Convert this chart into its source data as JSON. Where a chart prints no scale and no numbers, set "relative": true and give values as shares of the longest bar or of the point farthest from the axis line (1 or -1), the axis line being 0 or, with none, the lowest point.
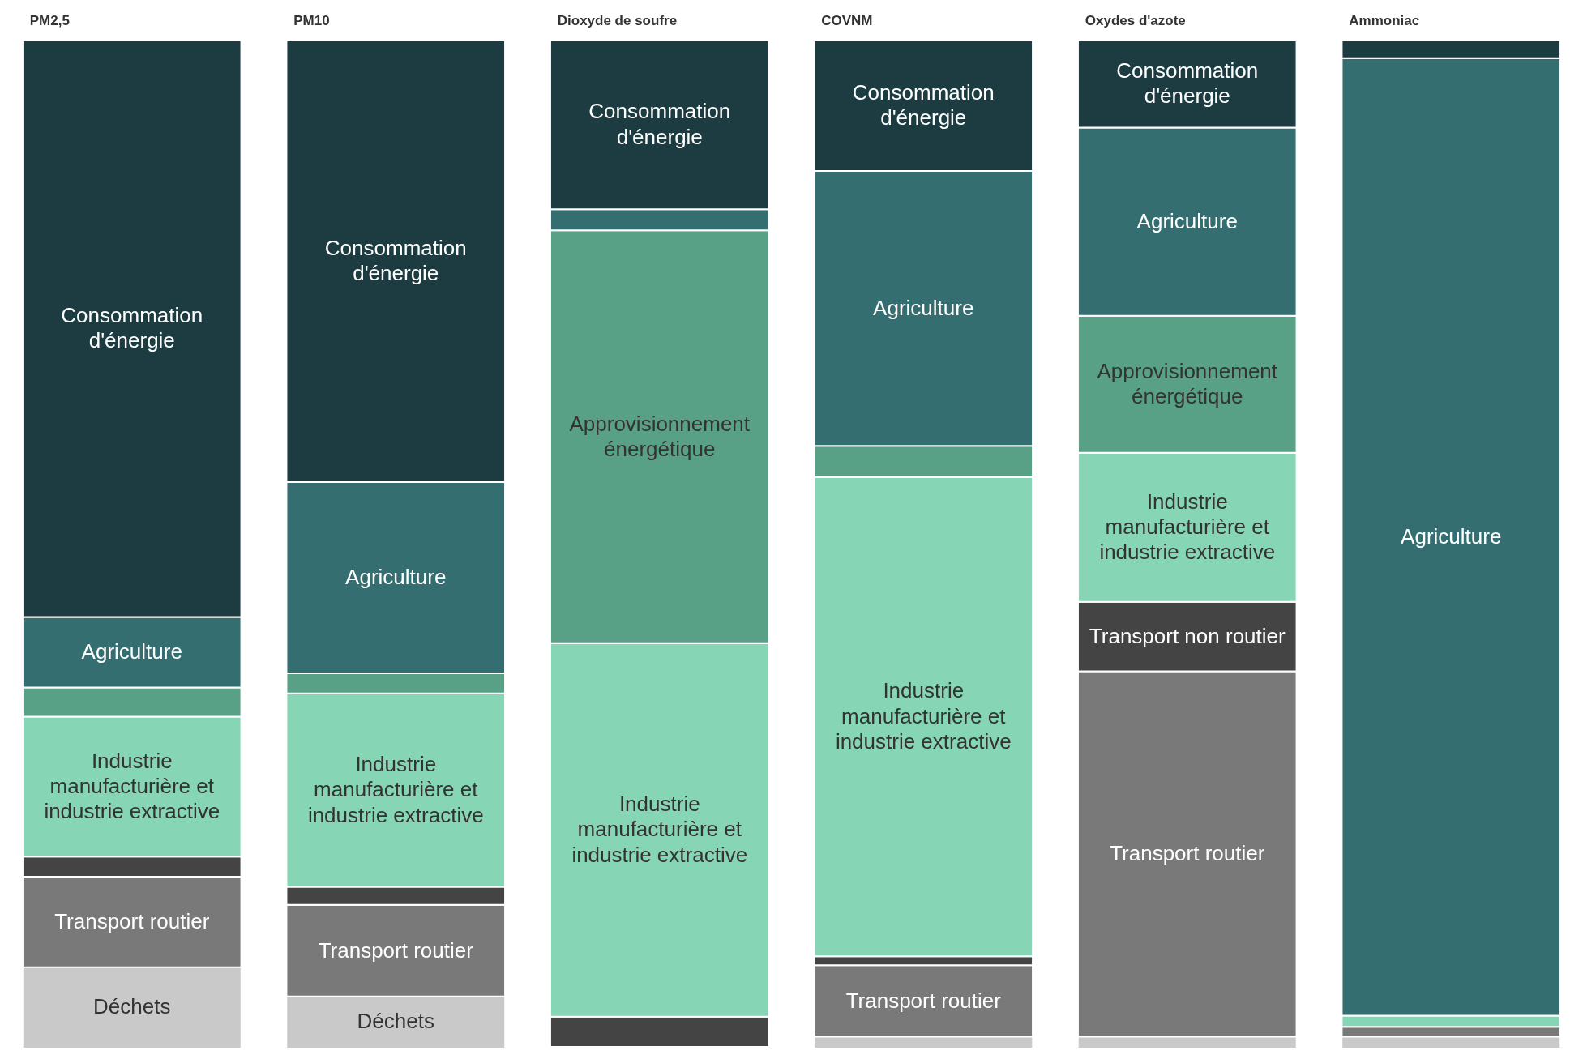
{
  "chart_data": {
    "type": "bar",
    "stacked": true,
    "relative": true,
    "categories": [
      "PM2,5",
      "PM10",
      "Dioxyde de soufre",
      "COVNM",
      "Oxydes d'azote",
      "Ammoniac"
    ],
    "series": [
      {
        "name": "Déchets",
        "color": "#c9c9c9",
        "values": [
          0.079,
          0.05,
          0,
          0.01,
          0.01,
          0.01
        ]
      },
      {
        "name": "Transport routier",
        "color": "#797979",
        "values": [
          0.09,
          0.091,
          0,
          0.071,
          0.363,
          0.01
        ]
      },
      {
        "name": "Transport non routier",
        "color": "#444444",
        "values": [
          0.02,
          0.018,
          0.03,
          0.009,
          0.069,
          0
        ]
      },
      {
        "name": "Industrie manufacturière et industrie extractive",
        "color": "#86d5b4",
        "values": [
          0.139,
          0.192,
          0.371,
          0.476,
          0.148,
          0.011
        ]
      },
      {
        "name": "Approvisionnement énergétique",
        "color": "#58a187",
        "values": [
          0.029,
          0.02,
          0.41,
          0.031,
          0.136,
          0
        ]
      },
      {
        "name": "Agriculture",
        "color": "#356e71",
        "values": [
          0.07,
          0.19,
          0.021,
          0.273,
          0.187,
          0.951
        ]
      },
      {
        "name": "Consommation d'énergie",
        "color": "#1c3c41",
        "values": [
          0.573,
          0.439,
          0.168,
          0.13,
          0.087,
          0.018
        ]
      }
    ]
  }
}
